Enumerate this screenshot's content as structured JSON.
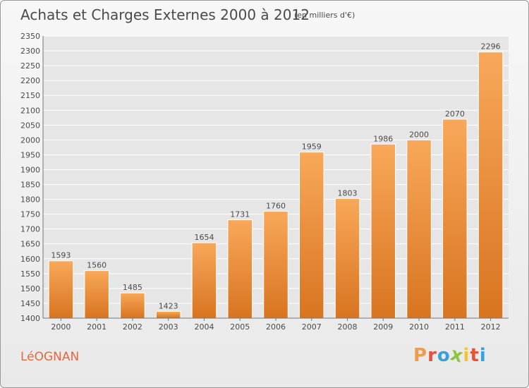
{
  "header": {
    "title": "Achats et Charges Externes 2000 à 2012",
    "subtitle": "(en milliers d'€)"
  },
  "footer": {
    "commune": "LéOGNAN",
    "logo_text": "Proxiti",
    "logo_colors": [
      "#f2994a",
      "#e8503a",
      "#3aa0d8",
      "#8cc63e",
      "#f2c230",
      "#e8503a",
      "#3aa0d8"
    ]
  },
  "colors": {
    "bar_top": "#f8a85a",
    "bar_bottom": "#d87420",
    "grid": "#ffffff",
    "plot_bg": "#e6e6e6",
    "text": "#4a4a4a"
  },
  "chart_data": {
    "type": "bar",
    "categories": [
      "2000",
      "2001",
      "2002",
      "2003",
      "2004",
      "2005",
      "2006",
      "2007",
      "2008",
      "2009",
      "2010",
      "2011",
      "2012"
    ],
    "values": [
      1593,
      1560,
      1485,
      1423,
      1654,
      1731,
      1760,
      1959,
      1803,
      1986,
      2000,
      2070,
      2296
    ],
    "title": "Achats et Charges Externes 2000 à 2012",
    "xlabel": "",
    "ylabel": "",
    "ylim": [
      1400,
      2350
    ],
    "yticks": [
      1400,
      1450,
      1500,
      1550,
      1600,
      1650,
      1700,
      1750,
      1800,
      1850,
      1900,
      1950,
      2000,
      2050,
      2100,
      2150,
      2200,
      2250,
      2300,
      2350
    ],
    "grid": true,
    "data_labels": true
  }
}
